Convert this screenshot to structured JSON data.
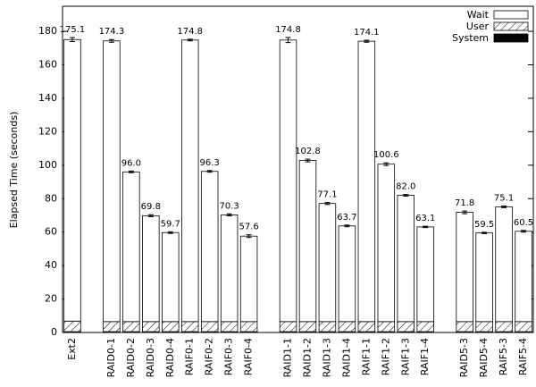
{
  "chart_data": {
    "type": "stacked-bar",
    "y_label": "Elapsed Time (seconds)",
    "categories": [
      "Ext2",
      null,
      "RAID0-1",
      "RAID0-2",
      "RAID0-3",
      "RAID0-4",
      "RAIF0-1",
      "RAIF0-2",
      "RAIF0-3",
      "RAIF0-4",
      null,
      "RAID1-1",
      "RAID1-2",
      "RAID1-3",
      "RAID1-4",
      "RAIF1-1",
      "RAIF1-2",
      "RAIF1-3",
      "RAIF1-4",
      null,
      "RAID5-3",
      "RAID5-4",
      "RAIF5-3",
      "RAIF5-4"
    ],
    "series": [
      {
        "name": "Wait",
        "color": "#ffffff",
        "pattern": "solid",
        "values": [
          168.3,
          null,
          167.8,
          89.5,
          63.3,
          53.2,
          168.3,
          89.8,
          63.8,
          51.1,
          null,
          168.3,
          96.3,
          70.6,
          57.2,
          167.6,
          94.1,
          75.5,
          56.6,
          null,
          65.3,
          53.0,
          68.6,
          54.0
        ]
      },
      {
        "name": "User",
        "color": "#000000",
        "pattern": "hatch",
        "values": [
          6.3,
          null,
          6.0,
          6.0,
          6.0,
          6.0,
          6.0,
          6.0,
          6.0,
          6.0,
          null,
          6.0,
          6.0,
          6.0,
          6.0,
          6.0,
          6.0,
          6.0,
          6.0,
          null,
          6.0,
          6.0,
          6.0,
          6.0
        ]
      },
      {
        "name": "System",
        "color": "#000000",
        "pattern": "solid",
        "values": [
          0.5,
          null,
          0.5,
          0.5,
          0.5,
          0.5,
          0.5,
          0.5,
          0.5,
          0.5,
          null,
          0.5,
          0.5,
          0.5,
          0.5,
          0.5,
          0.5,
          0.5,
          0.5,
          null,
          0.5,
          0.5,
          0.5,
          0.5
        ]
      }
    ],
    "totals": {
      "values": [
        175.1,
        null,
        174.3,
        96,
        69.8,
        59.7,
        174.8,
        96.3,
        70.3,
        57.6,
        null,
        174.8,
        102.8,
        77.1,
        63.7,
        174.1,
        100.6,
        82,
        63.1,
        null,
        71.8,
        59.5,
        75.1,
        60.5
      ],
      "value_labels": [
        "175.1",
        null,
        "174.3",
        "96.0",
        "69.8",
        "59.7",
        "174.8",
        "96.3",
        "70.3",
        "57.6",
        null,
        "174.8",
        "102.8",
        "77.1",
        "63.7",
        "174.1",
        "100.6",
        "82.0",
        "63.1",
        null,
        "71.8",
        "59.5",
        "75.1",
        "60.5"
      ],
      "errors": [
        1.2,
        null,
        0.8,
        0.5,
        0.6,
        0.5,
        0.5,
        0.5,
        0.6,
        0.8,
        null,
        1.5,
        0.8,
        0.6,
        0.5,
        0.6,
        0.8,
        0.5,
        0.4,
        null,
        0.8,
        0.4,
        0.5,
        0.5
      ]
    },
    "ylim": [
      0,
      195
    ],
    "yticks": [
      0,
      20,
      40,
      60,
      80,
      100,
      120,
      140,
      160,
      180
    ],
    "legend": "top-right"
  }
}
